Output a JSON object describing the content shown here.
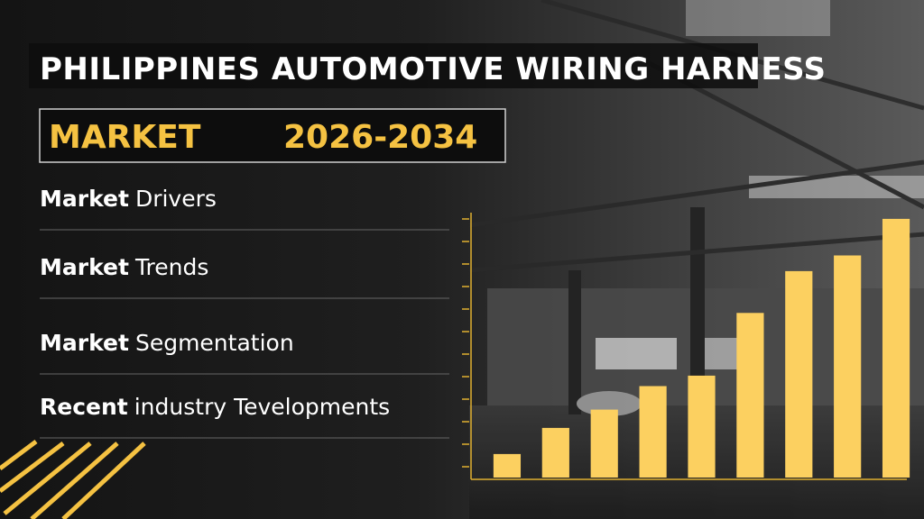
{
  "header": {
    "title": "PHILIPPINES AUTOMOTIVE WIRING HARNESS",
    "label": "MARKET",
    "period": "2026-2034"
  },
  "items": [
    {
      "bold": "Market",
      "rest": "Drivers"
    },
    {
      "bold": "Market",
      "rest": "Trends"
    },
    {
      "bold": "Market",
      "rest": "Segmentation"
    },
    {
      "bold": "Recent",
      "rest": "industry  Tevelopments"
    }
  ],
  "chart_data": {
    "type": "bar",
    "categories": [
      null,
      null,
      null,
      null,
      null,
      null,
      null,
      null,
      null
    ],
    "values": [
      9,
      19,
      26,
      35,
      39,
      63,
      79,
      85,
      99
    ],
    "color": "#fcd060",
    "ylim": [
      0,
      100
    ]
  }
}
